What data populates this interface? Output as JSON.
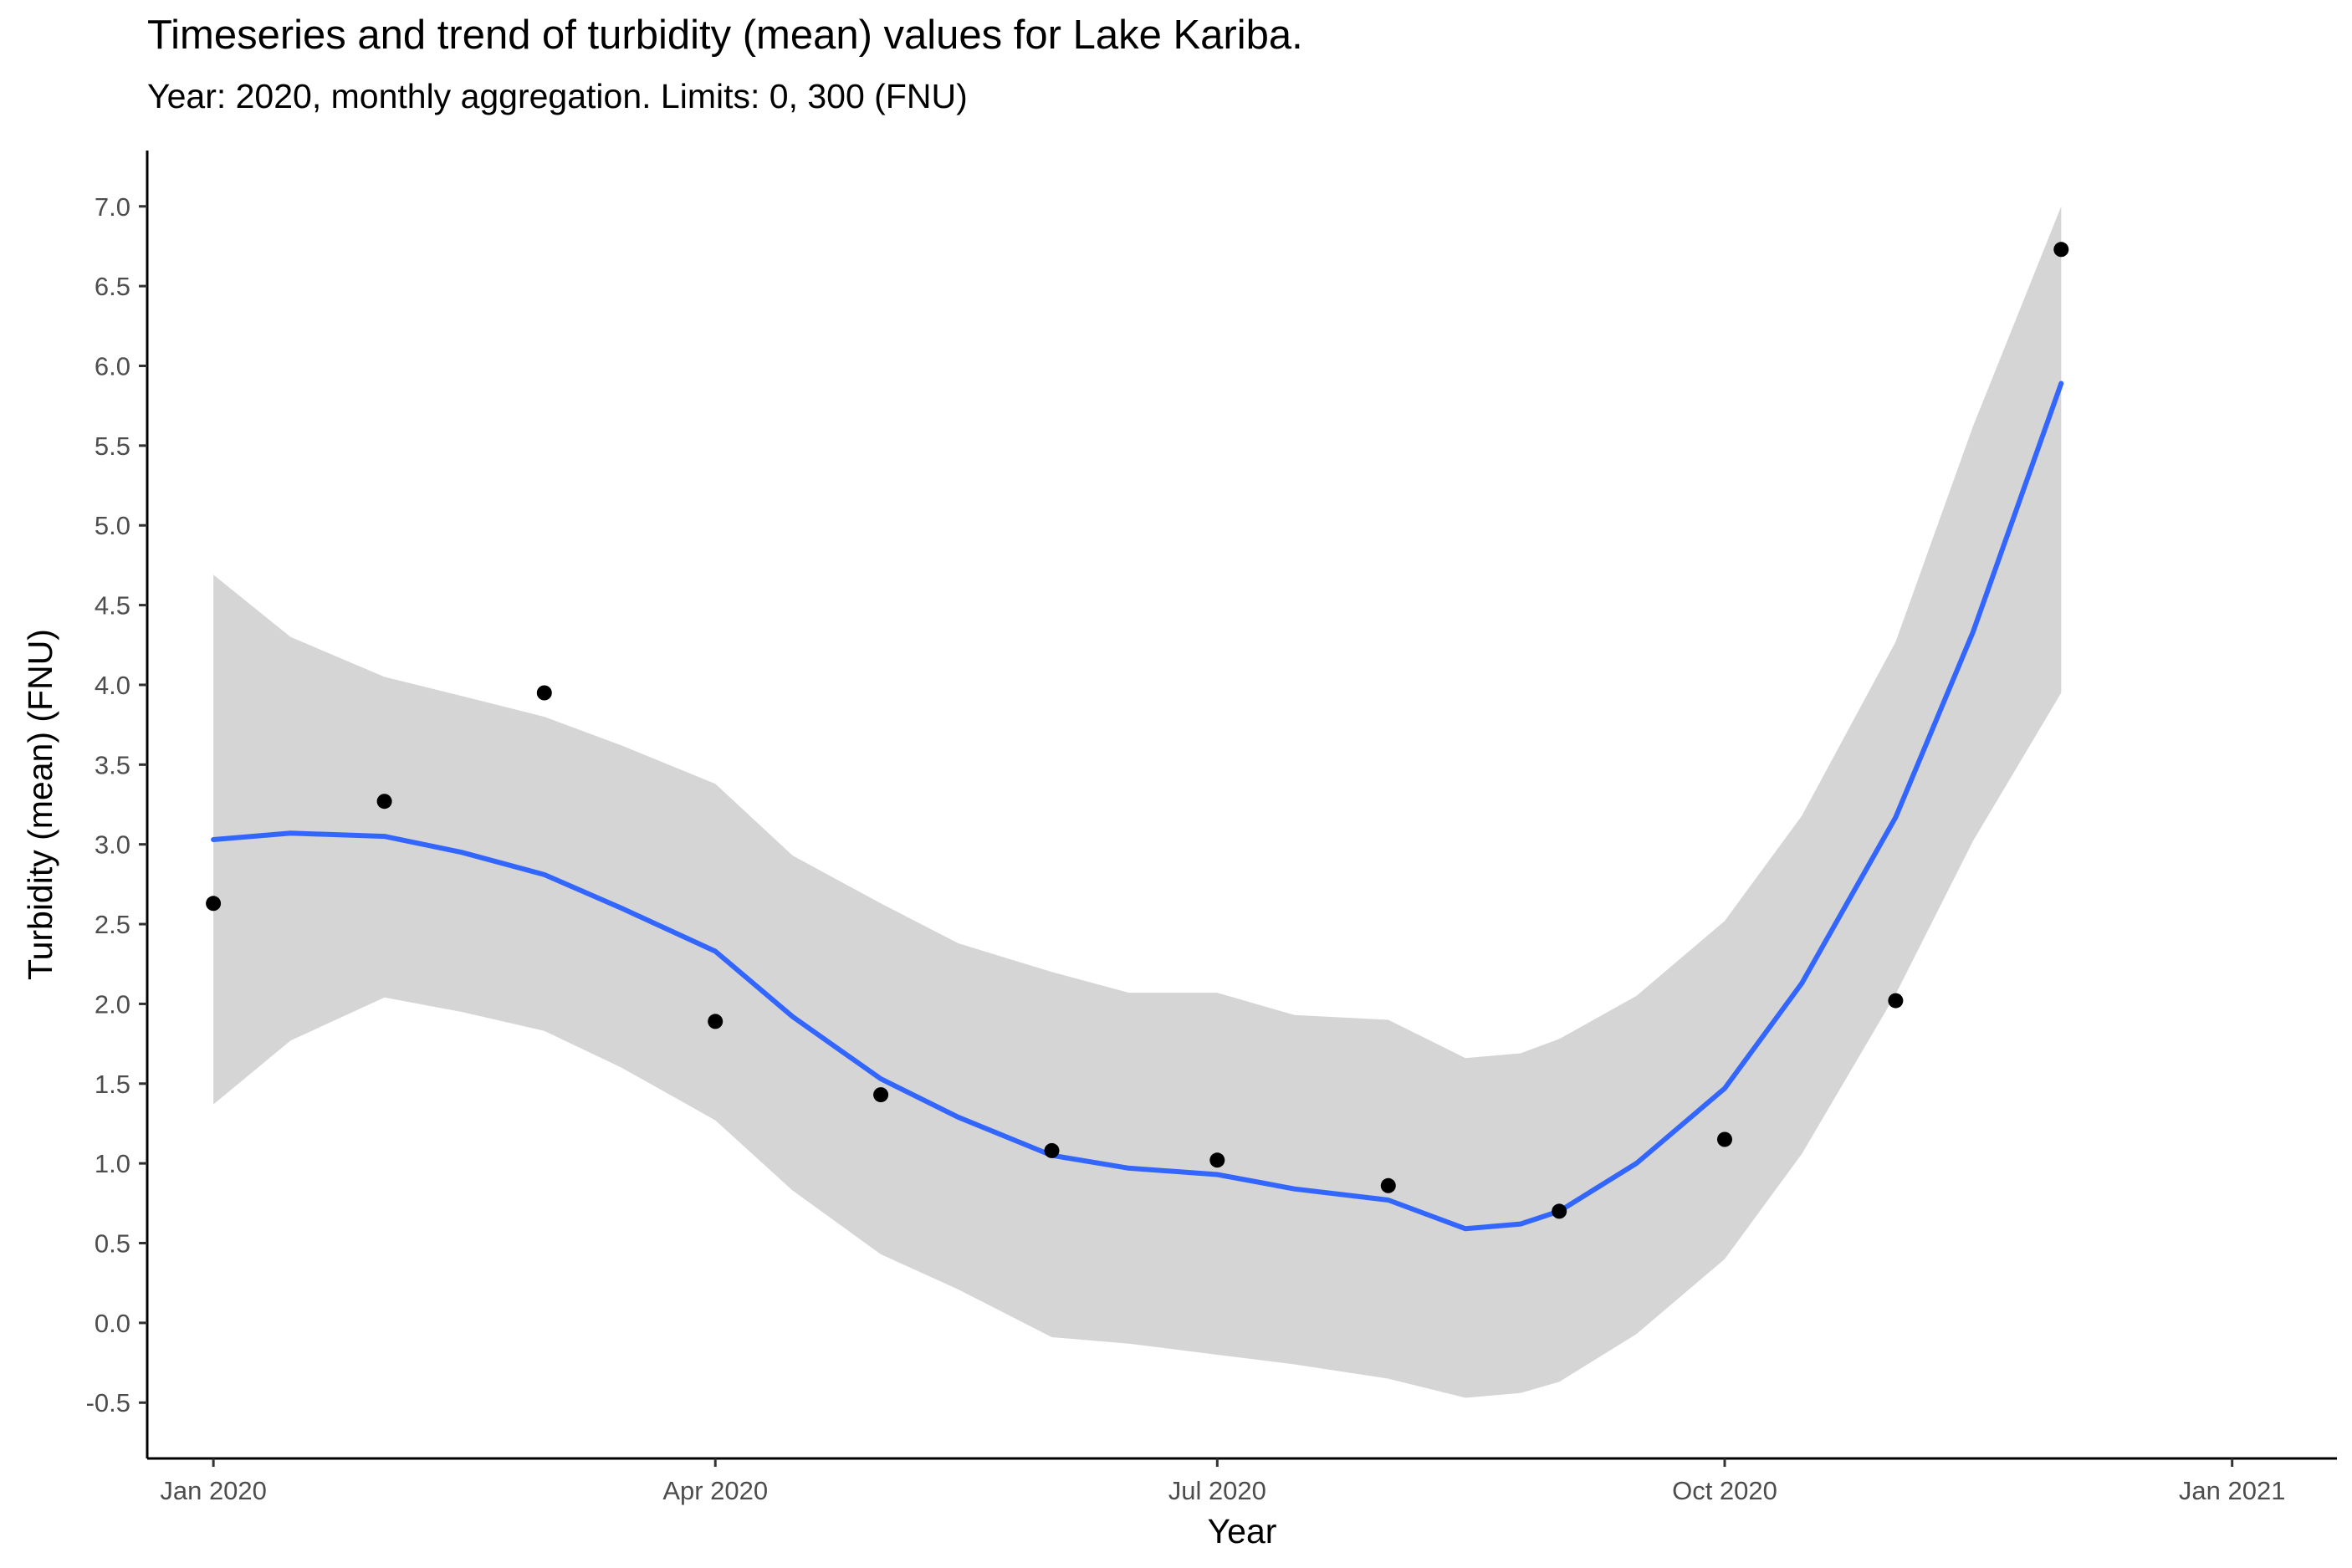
{
  "chart_data": {
    "type": "line",
    "title": "Timeseries and trend of turbidity (mean) values for Lake Kariba.",
    "subtitle": "Year: 2020, monthly aggregation. Limits: 0, 300 (FNU)",
    "xlabel": "Year",
    "ylabel": "Turbidity (mean) (FNU)",
    "x_axis_type": "date",
    "xlim": [
      "2019-12-20",
      "2021-01-20"
    ],
    "ylim": [
      -0.85,
      7.35
    ],
    "x_ticks": [
      {
        "date": "2020-01-01",
        "label": "Jan 2020"
      },
      {
        "date": "2020-04-01",
        "label": "Apr 2020"
      },
      {
        "date": "2020-07-01",
        "label": "Jul 2020"
      },
      {
        "date": "2020-10-01",
        "label": "Oct 2020"
      },
      {
        "date": "2021-01-01",
        "label": "Jan 2021"
      }
    ],
    "y_ticks": [
      -0.5,
      0.0,
      0.5,
      1.0,
      1.5,
      2.0,
      2.5,
      3.0,
      3.5,
      4.0,
      4.5,
      5.0,
      5.5,
      6.0,
      6.5,
      7.0
    ],
    "grid": false,
    "series": [
      {
        "kind": "points",
        "color": "#000000",
        "points": [
          {
            "x": "2020-01-01",
            "y": 2.63
          },
          {
            "x": "2020-02-01",
            "y": 3.27
          },
          {
            "x": "2020-03-01",
            "y": 3.95
          },
          {
            "x": "2020-04-01",
            "y": 1.89
          },
          {
            "x": "2020-05-01",
            "y": 1.43
          },
          {
            "x": "2020-06-01",
            "y": 1.08
          },
          {
            "x": "2020-07-01",
            "y": 1.02
          },
          {
            "x": "2020-08-01",
            "y": 0.86
          },
          {
            "x": "2020-09-01",
            "y": 0.7
          },
          {
            "x": "2020-10-01",
            "y": 1.15
          },
          {
            "x": "2020-11-01",
            "y": 2.02
          },
          {
            "x": "2020-12-01",
            "y": 6.73
          }
        ]
      },
      {
        "kind": "smooth",
        "color": "#3366FF",
        "band_color": "#d5d5d5",
        "points": [
          {
            "x": "2020-01-01",
            "y": 3.03,
            "lower": 1.37,
            "upper": 4.69
          },
          {
            "x": "2020-01-15",
            "y": 3.07,
            "lower": 1.77,
            "upper": 4.3
          },
          {
            "x": "2020-02-01",
            "y": 3.05,
            "lower": 2.04,
            "upper": 4.05
          },
          {
            "x": "2020-02-15",
            "y": 2.95,
            "lower": 1.95,
            "upper": 3.93
          },
          {
            "x": "2020-03-01",
            "y": 2.81,
            "lower": 1.83,
            "upper": 3.8
          },
          {
            "x": "2020-03-15",
            "y": 2.6,
            "lower": 1.6,
            "upper": 3.62
          },
          {
            "x": "2020-04-01",
            "y": 2.33,
            "lower": 1.27,
            "upper": 3.38
          },
          {
            "x": "2020-04-15",
            "y": 1.92,
            "lower": 0.83,
            "upper": 2.93
          },
          {
            "x": "2020-05-01",
            "y": 1.53,
            "lower": 0.43,
            "upper": 2.63
          },
          {
            "x": "2020-05-15",
            "y": 1.29,
            "lower": 0.21,
            "upper": 2.38
          },
          {
            "x": "2020-06-01",
            "y": 1.05,
            "lower": -0.09,
            "upper": 2.2
          },
          {
            "x": "2020-06-15",
            "y": 0.97,
            "lower": -0.13,
            "upper": 2.07
          },
          {
            "x": "2020-07-01",
            "y": 0.93,
            "lower": -0.2,
            "upper": 2.07
          },
          {
            "x": "2020-07-15",
            "y": 0.84,
            "lower": -0.26,
            "upper": 1.93
          },
          {
            "x": "2020-08-01",
            "y": 0.77,
            "lower": -0.35,
            "upper": 1.9
          },
          {
            "x": "2020-08-15",
            "y": 0.59,
            "lower": -0.47,
            "upper": 1.66
          },
          {
            "x": "2020-08-25",
            "y": 0.62,
            "lower": -0.44,
            "upper": 1.69
          },
          {
            "x": "2020-09-01",
            "y": 0.7,
            "lower": -0.37,
            "upper": 1.78
          },
          {
            "x": "2020-09-15",
            "y": 1.0,
            "lower": -0.07,
            "upper": 2.05
          },
          {
            "x": "2020-10-01",
            "y": 1.47,
            "lower": 0.4,
            "upper": 2.52
          },
          {
            "x": "2020-10-15",
            "y": 2.13,
            "lower": 1.06,
            "upper": 3.18
          },
          {
            "x": "2020-11-01",
            "y": 3.17,
            "lower": 2.06,
            "upper": 4.27
          },
          {
            "x": "2020-11-15",
            "y": 4.33,
            "lower": 3.02,
            "upper": 5.62
          },
          {
            "x": "2020-12-01",
            "y": 5.89,
            "lower": 3.95,
            "upper": 7.0
          }
        ]
      }
    ]
  }
}
